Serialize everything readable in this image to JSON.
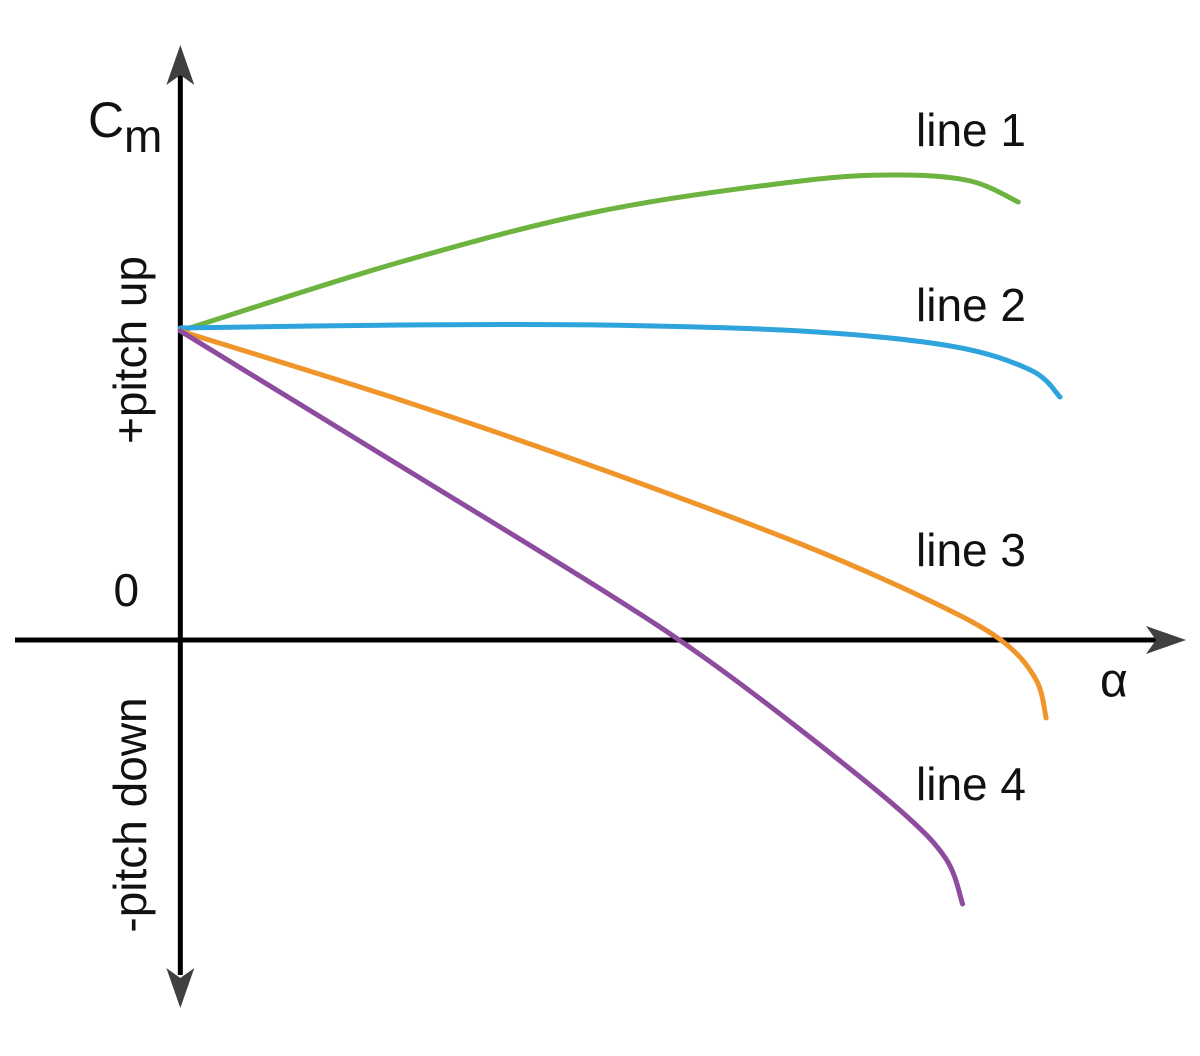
{
  "chart_data": {
    "type": "line",
    "ylabel": "C",
    "ylabel_subscript": "m",
    "xlabel": "α",
    "ylabel_upper": "+pitch up",
    "ylabel_lower": "-pitch down",
    "xlim": [
      -19,
      115
    ],
    "ylim": [
      -120,
      200
    ],
    "yticks": [
      0
    ],
    "series": [
      {
        "name": "line 1",
        "color": "#6db33f",
        "x": [
          0,
          25.3,
          48.3,
          71.3,
          82.8,
          90.8,
          96.3
        ],
        "values": [
          103,
          126,
          143,
          153,
          155,
          153,
          146
        ]
      },
      {
        "name": "line 2",
        "color": "#2ea3dc",
        "x": [
          0,
          25.3,
          48.3,
          71.3,
          88.5,
          97.7,
          101.1
        ],
        "values": [
          104,
          105,
          105,
          103,
          98,
          90,
          81
        ]
      },
      {
        "name": "line 3",
        "color": "#f0952a",
        "x": [
          0,
          25.3,
          48.3,
          71.3,
          86.2,
          94.3,
          98.3,
          99.5
        ],
        "values": [
          103,
          80,
          57,
          32,
          13,
          0,
          -13,
          -26
        ]
      },
      {
        "name": "line 4",
        "color": "#8e4c9e",
        "x": [
          0,
          25.3,
          48.3,
          59.8,
          71.3,
          82.8,
          88,
          89.9
        ],
        "values": [
          103,
          58,
          17,
          -5,
          -30,
          -57,
          -73,
          -88
        ]
      }
    ]
  }
}
